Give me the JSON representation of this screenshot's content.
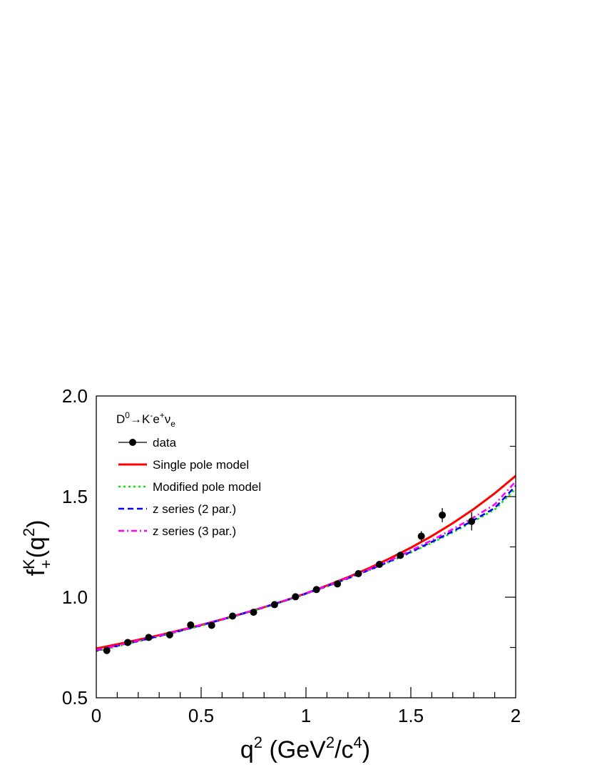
{
  "chart_data": {
    "type": "scatter",
    "title": "",
    "legend_title": "D0→K-e+νe",
    "xlabel": "q2 (GeV2/c4)",
    "ylabel": "fK+(q2)",
    "xlim": [
      0,
      2
    ],
    "ylim": [
      0.5,
      2.0
    ],
    "x_ticks": [
      "0",
      "0.5",
      "1",
      "1.5",
      "2"
    ],
    "y_ticks": [
      "0.5",
      "1.0",
      "1.5",
      "2.0"
    ],
    "grid": false,
    "legend_position": "top-left",
    "data": {
      "name": "data",
      "color": "#000000",
      "points": [
        {
          "x": 0.05,
          "y": 0.735,
          "err": 0.008
        },
        {
          "x": 0.15,
          "y": 0.775,
          "err": 0.008
        },
        {
          "x": 0.25,
          "y": 0.8,
          "err": 0.008
        },
        {
          "x": 0.35,
          "y": 0.813,
          "err": 0.008
        },
        {
          "x": 0.45,
          "y": 0.862,
          "err": 0.009
        },
        {
          "x": 0.55,
          "y": 0.86,
          "err": 0.009
        },
        {
          "x": 0.65,
          "y": 0.906,
          "err": 0.009
        },
        {
          "x": 0.75,
          "y": 0.925,
          "err": 0.009
        },
        {
          "x": 0.85,
          "y": 0.963,
          "err": 0.01
        },
        {
          "x": 0.95,
          "y": 1.002,
          "err": 0.01
        },
        {
          "x": 1.05,
          "y": 1.038,
          "err": 0.011
        },
        {
          "x": 1.15,
          "y": 1.066,
          "err": 0.012
        },
        {
          "x": 1.25,
          "y": 1.117,
          "err": 0.013
        },
        {
          "x": 1.35,
          "y": 1.163,
          "err": 0.014
        },
        {
          "x": 1.45,
          "y": 1.208,
          "err": 0.018
        },
        {
          "x": 1.55,
          "y": 1.303,
          "err": 0.025
        },
        {
          "x": 1.65,
          "y": 1.408,
          "err": 0.035
        },
        {
          "x": 1.79,
          "y": 1.377,
          "err": 0.045
        }
      ]
    },
    "series": [
      {
        "name": "Single pole model",
        "color": "#ff0000",
        "style": "solid",
        "x": [
          0,
          0.1,
          0.2,
          0.3,
          0.4,
          0.5,
          0.6,
          0.7,
          0.8,
          0.9,
          1.0,
          1.1,
          1.2,
          1.3,
          1.4,
          1.5,
          1.6,
          1.7,
          1.8,
          1.9,
          2.0
        ],
        "values": [
          0.745,
          0.766,
          0.788,
          0.811,
          0.836,
          0.862,
          0.89,
          0.919,
          0.95,
          0.983,
          1.019,
          1.058,
          1.099,
          1.144,
          1.193,
          1.246,
          1.304,
          1.368,
          1.438,
          1.516,
          1.603
        ]
      },
      {
        "name": "Modified pole model",
        "color": "#00ee00",
        "style": "dotted",
        "x": [
          0,
          0.1,
          0.2,
          0.3,
          0.4,
          0.5,
          0.6,
          0.7,
          0.8,
          0.9,
          1.0,
          1.1,
          1.2,
          1.3,
          1.4,
          1.5,
          1.6,
          1.7,
          1.8,
          1.9,
          2.0
        ],
        "values": [
          0.732,
          0.756,
          0.78,
          0.805,
          0.831,
          0.858,
          0.887,
          0.917,
          0.948,
          0.981,
          1.016,
          1.053,
          1.092,
          1.133,
          1.176,
          1.222,
          1.27,
          1.322,
          1.377,
          1.435,
          1.54
        ]
      },
      {
        "name": "z series (2 par.)",
        "color": "#0000ff",
        "style": "dashed",
        "x": [
          0,
          0.1,
          0.2,
          0.3,
          0.4,
          0.5,
          0.6,
          0.7,
          0.8,
          0.9,
          1.0,
          1.1,
          1.2,
          1.3,
          1.4,
          1.5,
          1.6,
          1.7,
          1.8,
          1.9,
          2.0
        ],
        "values": [
          0.735,
          0.758,
          0.782,
          0.807,
          0.833,
          0.86,
          0.889,
          0.919,
          0.95,
          0.983,
          1.018,
          1.055,
          1.094,
          1.135,
          1.179,
          1.225,
          1.275,
          1.327,
          1.383,
          1.443,
          1.553
        ]
      },
      {
        "name": "z series (3 par.)",
        "color": "#ff00ff",
        "style": "dashdot",
        "x": [
          0,
          0.1,
          0.2,
          0.3,
          0.4,
          0.5,
          0.6,
          0.7,
          0.8,
          0.9,
          1.0,
          1.1,
          1.2,
          1.3,
          1.4,
          1.5,
          1.6,
          1.7,
          1.8,
          1.9,
          2.0
        ],
        "values": [
          0.738,
          0.76,
          0.784,
          0.809,
          0.835,
          0.862,
          0.89,
          0.92,
          0.951,
          0.984,
          1.019,
          1.056,
          1.096,
          1.138,
          1.183,
          1.231,
          1.283,
          1.338,
          1.397,
          1.461,
          1.575
        ]
      }
    ]
  }
}
